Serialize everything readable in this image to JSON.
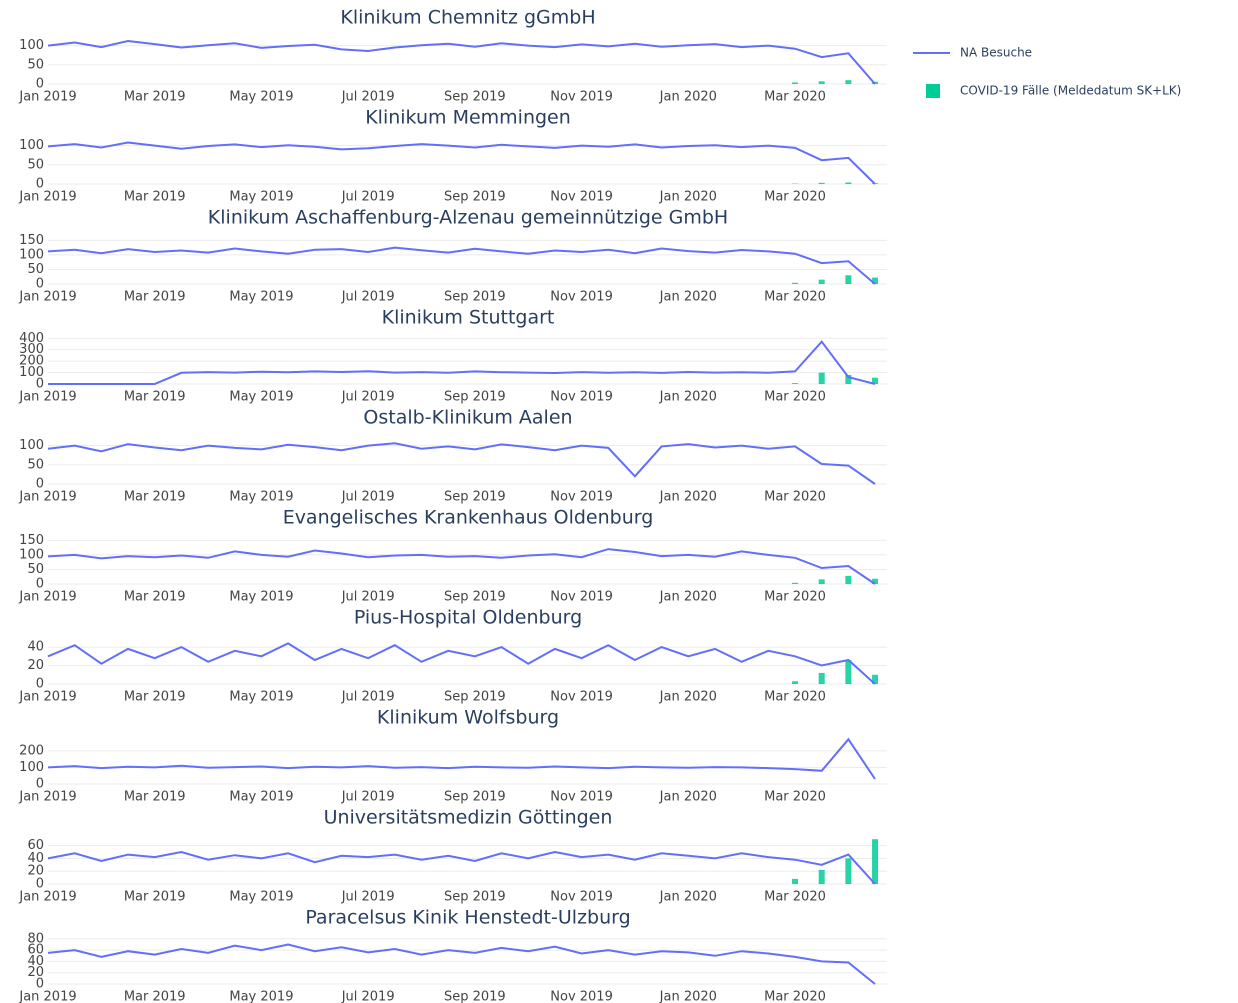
{
  "legend": {
    "items": [
      {
        "name": "NA Besuche",
        "color": "#636efa"
      },
      {
        "name": "COVID-19 Fälle (Meldedatum SK+LK)",
        "color": "#00cc96"
      }
    ]
  },
  "chart_data": [
    {
      "type": "line",
      "title": "Klinikum Chemnitz gGmbH",
      "categories": [
        "Jan 2019",
        null,
        null,
        null,
        "Mar 2019",
        null,
        null,
        null,
        "May 2019",
        null,
        null,
        null,
        "Jul 2019",
        null,
        null,
        null,
        "Sep 2019",
        null,
        null,
        null,
        "Nov 2019",
        null,
        null,
        null,
        "Jan 2020",
        null,
        null,
        null,
        "Mar 2020",
        null,
        null,
        null
      ],
      "series": [
        {
          "type": "line",
          "color": "#636efa",
          "values": [
            100,
            108,
            96,
            112,
            104,
            95,
            101,
            106,
            94,
            99,
            102,
            90,
            86,
            95,
            101,
            105,
            97,
            106,
            100,
            96,
            103,
            98,
            105,
            97,
            101,
            104,
            96,
            100,
            92,
            70,
            80,
            0
          ]
        },
        {
          "type": "bar",
          "color": "#00cc96",
          "values": [
            null,
            null,
            null,
            null,
            null,
            null,
            null,
            null,
            null,
            null,
            null,
            null,
            null,
            null,
            null,
            null,
            null,
            null,
            null,
            null,
            null,
            null,
            null,
            null,
            null,
            null,
            null,
            null,
            4,
            7,
            10,
            6
          ]
        }
      ],
      "ylim": [
        0,
        125
      ],
      "yticks": [
        0,
        50,
        100
      ]
    },
    {
      "type": "line",
      "title": "Klinikum Memmingen",
      "categories": [
        "Jan 2019",
        null,
        null,
        null,
        "Mar 2019",
        null,
        null,
        null,
        "May 2019",
        null,
        null,
        null,
        "Jul 2019",
        null,
        null,
        null,
        "Sep 2019",
        null,
        null,
        null,
        "Nov 2019",
        null,
        null,
        null,
        "Jan 2020",
        null,
        null,
        null,
        "Mar 2020",
        null,
        null,
        null
      ],
      "series": [
        {
          "type": "line",
          "color": "#636efa",
          "values": [
            98,
            104,
            95,
            108,
            100,
            92,
            99,
            103,
            96,
            101,
            97,
            90,
            93,
            99,
            104,
            100,
            95,
            102,
            98,
            94,
            100,
            97,
            103,
            95,
            99,
            101,
            96,
            100,
            94,
            62,
            68,
            0
          ]
        },
        {
          "type": "bar",
          "color": "#00cc96",
          "values": [
            null,
            null,
            null,
            null,
            null,
            null,
            null,
            null,
            null,
            null,
            null,
            null,
            null,
            null,
            null,
            null,
            null,
            null,
            null,
            null,
            null,
            null,
            null,
            null,
            null,
            null,
            null,
            null,
            1,
            3,
            4,
            2
          ]
        }
      ],
      "ylim": [
        0,
        125
      ],
      "yticks": [
        0,
        50,
        100
      ]
    },
    {
      "type": "line",
      "title": "Klinikum Aschaffenburg-Alzenau gemeinnützige GmbH",
      "categories": [
        "Jan 2019",
        null,
        null,
        null,
        "Mar 2019",
        null,
        null,
        null,
        "May 2019",
        null,
        null,
        null,
        "Jul 2019",
        null,
        null,
        null,
        "Sep 2019",
        null,
        null,
        null,
        "Nov 2019",
        null,
        null,
        null,
        "Jan 2020",
        null,
        null,
        null,
        "Mar 2020",
        null,
        null,
        null
      ],
      "series": [
        {
          "type": "line",
          "color": "#636efa",
          "values": [
            112,
            118,
            106,
            120,
            110,
            115,
            108,
            122,
            112,
            104,
            118,
            120,
            110,
            125,
            116,
            108,
            121,
            112,
            104,
            115,
            110,
            118,
            106,
            122,
            113,
            108,
            117,
            112,
            104,
            72,
            78,
            0
          ]
        },
        {
          "type": "bar",
          "color": "#00cc96",
          "values": [
            null,
            null,
            null,
            null,
            null,
            null,
            null,
            null,
            null,
            null,
            null,
            null,
            null,
            null,
            null,
            null,
            null,
            null,
            null,
            null,
            null,
            null,
            null,
            null,
            null,
            null,
            null,
            null,
            4,
            15,
            30,
            22
          ]
        }
      ],
      "ylim": [
        0,
        165
      ],
      "yticks": [
        0,
        50,
        100,
        150
      ]
    },
    {
      "type": "line",
      "title": "Klinikum Stuttgart",
      "categories": [
        "Jan 2019",
        null,
        null,
        null,
        "Mar 2019",
        null,
        null,
        null,
        "May 2019",
        null,
        null,
        null,
        "Jul 2019",
        null,
        null,
        null,
        "Sep 2019",
        null,
        null,
        null,
        "Nov 2019",
        null,
        null,
        null,
        "Jan 2020",
        null,
        null,
        null,
        "Mar 2020",
        null,
        null,
        null
      ],
      "series": [
        {
          "type": "line",
          "color": "#636efa",
          "values": [
            0,
            0,
            0,
            0,
            0,
            98,
            104,
            100,
            108,
            102,
            110,
            105,
            112,
            100,
            104,
            98,
            110,
            103,
            100,
            96,
            104,
            99,
            102,
            97,
            105,
            100,
            103,
            98,
            110,
            370,
            60,
            0
          ]
        },
        {
          "type": "bar",
          "color": "#00cc96",
          "values": [
            null,
            null,
            null,
            null,
            null,
            null,
            null,
            null,
            null,
            null,
            null,
            null,
            null,
            null,
            null,
            null,
            null,
            null,
            null,
            null,
            null,
            null,
            null,
            null,
            null,
            null,
            null,
            null,
            8,
            100,
            80,
            55
          ]
        }
      ],
      "ylim": [
        0,
        420
      ],
      "yticks": [
        0,
        100,
        200,
        300,
        400
      ]
    },
    {
      "type": "line",
      "title": "Ostalb-Klinikum Aalen",
      "categories": [
        "Jan 2019",
        null,
        null,
        null,
        "Mar 2019",
        null,
        null,
        null,
        "May 2019",
        null,
        null,
        null,
        "Jul 2019",
        null,
        null,
        null,
        "Sep 2019",
        null,
        null,
        null,
        "Nov 2019",
        null,
        null,
        null,
        "Jan 2020",
        null,
        null,
        null,
        "Mar 2020",
        null,
        null,
        null
      ],
      "series": [
        {
          "type": "line",
          "color": "#636efa",
          "values": [
            92,
            100,
            85,
            104,
            95,
            88,
            100,
            94,
            90,
            102,
            96,
            88,
            100,
            106,
            92,
            98,
            90,
            103,
            96,
            88,
            100,
            94,
            20,
            98,
            104,
            95,
            100,
            92,
            98,
            52,
            48,
            0
          ]
        }
      ],
      "ylim": [
        0,
        125
      ],
      "yticks": [
        0,
        50,
        100
      ]
    },
    {
      "type": "line",
      "title": "Evangelisches Krankenhaus Oldenburg",
      "categories": [
        "Jan 2019",
        null,
        null,
        null,
        "Mar 2019",
        null,
        null,
        null,
        "May 2019",
        null,
        null,
        null,
        "Jul 2019",
        null,
        null,
        null,
        "Sep 2019",
        null,
        null,
        null,
        "Nov 2019",
        null,
        null,
        null,
        "Jan 2020",
        null,
        null,
        null,
        "Mar 2020",
        null,
        null,
        null
      ],
      "series": [
        {
          "type": "line",
          "color": "#636efa",
          "values": [
            95,
            100,
            88,
            96,
            92,
            98,
            90,
            112,
            100,
            94,
            115,
            105,
            92,
            98,
            100,
            94,
            96,
            90,
            98,
            102,
            92,
            120,
            110,
            96,
            100,
            94,
            112,
            100,
            90,
            55,
            62,
            0
          ]
        },
        {
          "type": "bar",
          "color": "#00cc96",
          "values": [
            null,
            null,
            null,
            null,
            null,
            null,
            null,
            null,
            null,
            null,
            null,
            null,
            null,
            null,
            null,
            null,
            null,
            null,
            null,
            null,
            null,
            null,
            null,
            null,
            null,
            null,
            null,
            null,
            4,
            16,
            28,
            18
          ]
        }
      ],
      "ylim": [
        0,
        165
      ],
      "yticks": [
        0,
        50,
        100,
        150
      ]
    },
    {
      "type": "line",
      "title": "Pius-Hospital Oldenburg",
      "categories": [
        "Jan 2019",
        null,
        null,
        null,
        "Mar 2019",
        null,
        null,
        null,
        "May 2019",
        null,
        null,
        null,
        "Jul 2019",
        null,
        null,
        null,
        "Sep 2019",
        null,
        null,
        null,
        "Nov 2019",
        null,
        null,
        null,
        "Jan 2020",
        null,
        null,
        null,
        "Mar 2020",
        null,
        null,
        null
      ],
      "series": [
        {
          "type": "line",
          "color": "#636efa",
          "values": [
            30,
            42,
            22,
            38,
            28,
            40,
            24,
            36,
            30,
            44,
            26,
            38,
            28,
            42,
            24,
            36,
            30,
            40,
            22,
            38,
            28,
            42,
            26,
            40,
            30,
            38,
            24,
            36,
            30,
            20,
            26,
            0
          ]
        },
        {
          "type": "bar",
          "color": "#00cc96",
          "values": [
            null,
            null,
            null,
            null,
            null,
            null,
            null,
            null,
            null,
            null,
            null,
            null,
            null,
            null,
            null,
            null,
            null,
            null,
            null,
            null,
            null,
            null,
            null,
            null,
            null,
            null,
            null,
            null,
            3,
            12,
            26,
            10
          ]
        }
      ],
      "ylim": [
        0,
        52
      ],
      "yticks": [
        0,
        20,
        40
      ]
    },
    {
      "type": "line",
      "title": "Klinikum Wolfsburg",
      "categories": [
        "Jan 2019",
        null,
        null,
        null,
        "Mar 2019",
        null,
        null,
        null,
        "May 2019",
        null,
        null,
        null,
        "Jul 2019",
        null,
        null,
        null,
        "Sep 2019",
        null,
        null,
        null,
        "Nov 2019",
        null,
        null,
        null,
        "Jan 2020",
        null,
        null,
        null,
        "Mar 2020",
        null,
        null,
        null
      ],
      "series": [
        {
          "type": "line",
          "color": "#636efa",
          "values": [
            100,
            108,
            96,
            104,
            100,
            110,
            98,
            102,
            106,
            96,
            104,
            100,
            108,
            98,
            102,
            96,
            104,
            100,
            98,
            106,
            100,
            96,
            104,
            100,
            98,
            102,
            100,
            96,
            90,
            80,
            270,
            30
          ]
        }
      ],
      "ylim": [
        0,
        290
      ],
      "yticks": [
        0,
        100,
        200
      ]
    },
    {
      "type": "line",
      "title": "Universitätsmedizin Göttingen",
      "categories": [
        "Jan 2019",
        null,
        null,
        null,
        "Mar 2019",
        null,
        null,
        null,
        "May 2019",
        null,
        null,
        null,
        "Jul 2019",
        null,
        null,
        null,
        "Sep 2019",
        null,
        null,
        null,
        "Nov 2019",
        null,
        null,
        null,
        "Jan 2020",
        null,
        null,
        null,
        "Mar 2020",
        null,
        null,
        null
      ],
      "series": [
        {
          "type": "line",
          "color": "#636efa",
          "values": [
            40,
            48,
            36,
            46,
            42,
            50,
            38,
            45,
            40,
            48,
            34,
            44,
            42,
            46,
            38,
            44,
            36,
            48,
            40,
            50,
            42,
            46,
            38,
            48,
            44,
            40,
            48,
            42,
            38,
            30,
            46,
            0
          ]
        },
        {
          "type": "bar",
          "color": "#00cc96",
          "values": [
            null,
            null,
            null,
            null,
            null,
            null,
            null,
            null,
            null,
            null,
            null,
            null,
            null,
            null,
            null,
            null,
            null,
            null,
            null,
            null,
            null,
            null,
            null,
            null,
            null,
            null,
            null,
            null,
            8,
            22,
            40,
            70
          ]
        }
      ],
      "ylim": [
        0,
        75
      ],
      "yticks": [
        0,
        20,
        40,
        60
      ]
    },
    {
      "type": "line",
      "title": "Paracelsus Kinik Henstedt-Ulzburg",
      "categories": [
        "Jan 2019",
        null,
        null,
        null,
        "Mar 2019",
        null,
        null,
        null,
        "May 2019",
        null,
        null,
        null,
        "Jul 2019",
        null,
        null,
        null,
        "Sep 2019",
        null,
        null,
        null,
        "Nov 2019",
        null,
        null,
        null,
        "Jan 2020",
        null,
        null,
        null,
        "Mar 2020",
        null,
        null,
        null
      ],
      "series": [
        {
          "type": "line",
          "color": "#636efa",
          "values": [
            55,
            60,
            48,
            58,
            52,
            62,
            55,
            68,
            60,
            70,
            58,
            65,
            56,
            62,
            52,
            60,
            55,
            64,
            58,
            66,
            54,
            60,
            52,
            58,
            56,
            50,
            58,
            54,
            48,
            40,
            38,
            0
          ]
        }
      ],
      "ylim": [
        0,
        85
      ],
      "yticks": [
        0,
        20,
        40,
        60,
        80
      ]
    }
  ]
}
